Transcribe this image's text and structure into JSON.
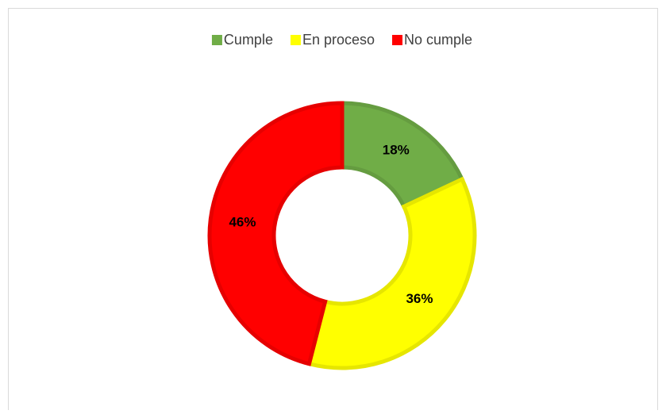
{
  "chart_data": {
    "type": "donut",
    "categories": [
      "Cumple",
      "En proceso",
      "No cumple"
    ],
    "values": [
      18,
      36,
      46
    ],
    "value_labels": [
      "18%",
      "36%",
      "46%"
    ],
    "colors": [
      "#70ad47",
      "#ffff00",
      "#ff0000"
    ],
    "legend": "top"
  }
}
